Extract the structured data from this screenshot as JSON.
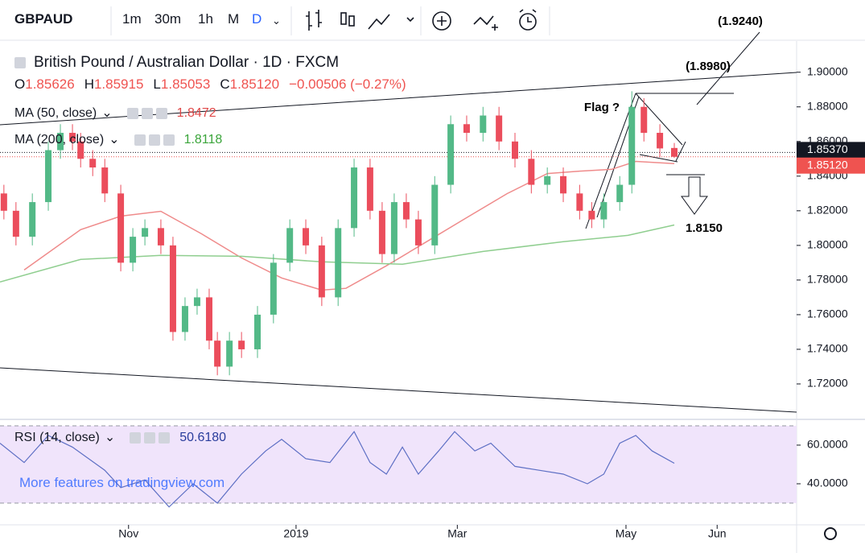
{
  "toolbar": {
    "symbol": "GBPAUD",
    "intervals": [
      "1m",
      "30m",
      "1h",
      "M",
      "D"
    ]
  },
  "chart_data": {
    "type": "candlestick",
    "title": "British Pound / Australian Dollar · 1D · FXCM",
    "legend_ohlc": [
      {
        "key": "O",
        "value": "1.85626"
      },
      {
        "key": "H",
        "value": "1.85915"
      },
      {
        "key": "L",
        "value": "1.85053"
      },
      {
        "key": "C",
        "value": "1.85120"
      }
    ],
    "change": "−0.00506 (−0.27%)",
    "x": [
      1.0,
      4.1,
      8.3,
      12.4,
      15.5,
      18.6,
      20.7,
      23.8,
      26.9,
      31.0,
      34.1,
      37.2,
      41.3,
      44.4,
      47.5,
      50.6,
      53.7,
      55.8,
      58.9,
      62.0,
      66.1,
      70.2,
      74.4,
      78.5,
      82.6,
      86.8,
      90.9,
      95.0,
      98.1,
      101.2,
      104.3,
      107.4,
      111.6,
      115.7,
      119.8,
      124.0,
      128.1,
      132.2,
      136.4,
      140.5,
      144.6,
      148.8,
      151.9,
      155.0,
      159.1,
      162.2,
      165.3,
      169.4,
      173.1
    ],
    "open": [
      1.83,
      1.82,
      1.805,
      1.825,
      1.855,
      1.865,
      1.86,
      1.85,
      1.845,
      1.83,
      1.79,
      1.805,
      1.81,
      1.8,
      1.75,
      1.765,
      1.77,
      1.745,
      1.73,
      1.745,
      1.74,
      1.76,
      1.79,
      1.81,
      1.8,
      1.77,
      1.81,
      1.845,
      1.82,
      1.795,
      1.825,
      1.815,
      1.8,
      1.835,
      1.87,
      1.865,
      1.875,
      1.86,
      1.85,
      1.835,
      1.84,
      1.83,
      1.82,
      1.815,
      1.825,
      1.835,
      1.88,
      1.865,
      1.85626
    ],
    "high": [
      1.835,
      1.825,
      1.83,
      1.86,
      1.87,
      1.87,
      1.865,
      1.855,
      1.85,
      1.835,
      1.81,
      1.815,
      1.815,
      1.805,
      1.77,
      1.775,
      1.775,
      1.75,
      1.75,
      1.75,
      1.765,
      1.795,
      1.815,
      1.815,
      1.805,
      1.815,
      1.85,
      1.85,
      1.825,
      1.83,
      1.83,
      1.82,
      1.84,
      1.875,
      1.875,
      1.88,
      1.88,
      1.865,
      1.855,
      1.845,
      1.845,
      1.835,
      1.825,
      1.83,
      1.84,
      1.889,
      1.885,
      1.87,
      1.85915
    ],
    "low": [
      1.815,
      1.8,
      1.8,
      1.82,
      1.85,
      1.855,
      1.845,
      1.84,
      1.825,
      1.785,
      1.785,
      1.8,
      1.795,
      1.745,
      1.745,
      1.76,
      1.74,
      1.725,
      1.725,
      1.735,
      1.735,
      1.755,
      1.785,
      1.795,
      1.765,
      1.765,
      1.805,
      1.815,
      1.79,
      1.79,
      1.81,
      1.795,
      1.795,
      1.83,
      1.86,
      1.86,
      1.855,
      1.845,
      1.83,
      1.83,
      1.825,
      1.815,
      1.81,
      1.81,
      1.82,
      1.83,
      1.86,
      1.851,
      1.85053
    ],
    "close": [
      1.82,
      1.805,
      1.825,
      1.855,
      1.865,
      1.86,
      1.85,
      1.845,
      1.83,
      1.79,
      1.805,
      1.81,
      1.8,
      1.75,
      1.765,
      1.77,
      1.745,
      1.73,
      1.745,
      1.74,
      1.76,
      1.79,
      1.81,
      1.8,
      1.77,
      1.81,
      1.845,
      1.82,
      1.795,
      1.825,
      1.815,
      1.8,
      1.835,
      1.87,
      1.865,
      1.875,
      1.86,
      1.85,
      1.835,
      1.84,
      1.83,
      1.82,
      1.815,
      1.825,
      1.835,
      1.88,
      1.865,
      1.856,
      1.8512
    ],
    "up_color": "#53b987",
    "down_color": "#eb4d5c",
    "xlim": [
      0,
      204.5
    ],
    "xticks": [
      {
        "value": 33,
        "label": "Nov"
      },
      {
        "value": 76,
        "label": "2019"
      },
      {
        "value": 117.4,
        "label": "Mar"
      },
      {
        "value": 160.7,
        "label": "May"
      },
      {
        "value": 184.1,
        "label": "Jun"
      }
    ],
    "ylim": [
      1.7,
      1.918
    ],
    "yticks": [
      {
        "value": 1.72,
        "label": "1.72000"
      },
      {
        "value": 1.74,
        "label": "1.74000"
      },
      {
        "value": 1.76,
        "label": "1.76000"
      },
      {
        "value": 1.78,
        "label": "1.78000"
      },
      {
        "value": 1.8,
        "label": "1.80000"
      },
      {
        "value": 1.82,
        "label": "1.82000"
      },
      {
        "value": 1.84,
        "label": "1.84000"
      },
      {
        "value": 1.86,
        "label": "1.86000"
      },
      {
        "value": 1.88,
        "label": "1.88000"
      },
      {
        "value": 1.9,
        "label": "1.90000"
      }
    ],
    "price_tags": [
      {
        "value": 1.8537,
        "label": "1.85370",
        "color": "#131722"
      },
      {
        "value": 1.8512,
        "label": "1.85120",
        "color": "#ef5350"
      }
    ],
    "overlays": [
      {
        "name": "MA (50, close)",
        "last": "1.8472",
        "color": "#ef8b8b",
        "text_color": "#e04848",
        "x": [
          6.2,
          20.7,
          31.0,
          41.3,
          51.7,
          62.0,
          72.3,
          82.6,
          88.8,
          99.2,
          109.5,
          119.8,
          130.2,
          140.5,
          148.8,
          157.0,
          163.2,
          173.1
        ],
        "values": [
          1.7858,
          1.8091,
          1.8169,
          1.8197,
          1.8067,
          1.7928,
          1.7812,
          1.7742,
          1.7752,
          1.7882,
          1.8021,
          1.816,
          1.8299,
          1.8415,
          1.8429,
          1.8439,
          1.8485,
          1.8472
        ]
      },
      {
        "name": "MA (200, close)",
        "last": "1.8118",
        "color": "#8fce8f",
        "text_color": "#3ba53b",
        "x": [
          0,
          20.7,
          41.3,
          62.0,
          82.6,
          103.3,
          124.0,
          144.6,
          161.2,
          173.1
        ],
        "values": [
          1.7789,
          1.7919,
          1.7942,
          1.7937,
          1.7905,
          1.7891,
          1.7965,
          1.8021,
          1.8058,
          1.8118
        ]
      }
    ],
    "annotations": [
      "(1.9240)",
      "(1.8980)",
      "Flag ?",
      "1.8150"
    ],
    "rsi": {
      "name": "RSI (14, close)",
      "last": "50.6180",
      "color": "#5d6fc4",
      "text_color": "#2a3d9c",
      "x": [
        0,
        6.2,
        12.4,
        18.6,
        26.9,
        31.0,
        37.2,
        43.4,
        49.6,
        55.8,
        62.0,
        68.2,
        72.3,
        78.5,
        84.7,
        90.9,
        95.0,
        99.2,
        103.3,
        107.4,
        112.6,
        116.7,
        121.9,
        126.0,
        132.2,
        138.4,
        144.6,
        150.8,
        155.0,
        159.1,
        163.2,
        167.4,
        173.1
      ],
      "values": [
        61,
        51,
        65,
        59,
        47,
        38,
        42,
        28,
        40,
        30,
        45,
        57,
        63,
        53,
        51,
        67,
        51,
        45,
        59,
        45,
        57,
        67,
        57,
        61,
        49,
        47,
        45,
        40,
        45,
        61,
        65,
        57,
        50.618
      ],
      "ylim": [
        18.75,
        72.9
      ],
      "yticks": [
        {
          "value": 40,
          "label": "40.0000"
        },
        {
          "value": 60,
          "label": "60.0000"
        }
      ],
      "band": [
        30,
        70
      ]
    },
    "watermark": "More features on tradingview.com"
  }
}
